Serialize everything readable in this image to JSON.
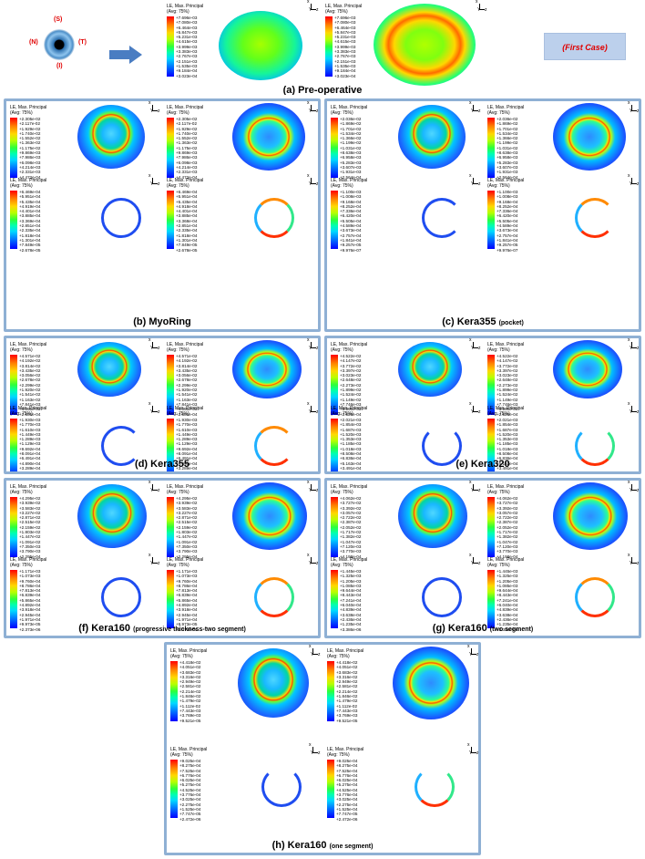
{
  "legend_title": [
    "LE, Max. Principal",
    "(Avg: 75%)"
  ],
  "axis": {
    "x": "x",
    "y": "Y",
    "z": "z"
  },
  "pre": {
    "labels": {
      "s": "(S)",
      "n": "(N)",
      "t": "(T)",
      "i": "(I)"
    },
    "first_case": "(First Case)",
    "caption": "(a) Pre-operative",
    "legend": [
      "+7.696e-03",
      "+7.080e-03",
      "+6.464e-03",
      "+5.847e-03",
      "+5.231e-03",
      "+4.615e-03",
      "+3.999e-03",
      "+3.383e-03",
      "+2.767e-03",
      "+2.151e-03",
      "+1.535e-03",
      "+9.184e-04",
      "+3.023e-04"
    ]
  },
  "panels": {
    "b": {
      "caption": "(b) MyoRing",
      "caption_small": "",
      "cornea": [
        "+2.305e-02",
        "+2.117e-02",
        "+1.929e-02",
        "+1.740e-02",
        "+1.552e-02",
        "+1.363e-02",
        "+1.175e-02",
        "+9.869e-03",
        "+7.986e-03",
        "+6.098e-03",
        "+4.214e-03",
        "+2.331e-03",
        "+4.472e-04"
      ],
      "ring": [
        "+6.469e-04",
        "+5.951e-04",
        "+5.435e-04",
        "+4.919e-04",
        "+4.401e-04",
        "+3.885e-04",
        "+3.369e-04",
        "+2.851e-04",
        "+2.335e-04",
        "+1.818e-04",
        "+1.301e-04",
        "+7.849e-05",
        "+2.678e-05"
      ],
      "ring2": [
        "+6.469e-04",
        "+5.951e-04",
        "+5.435e-04",
        "+4.918e-04",
        "+4.401e-04",
        "+3.885e-04",
        "+3.368e-04",
        "+2.851e-04",
        "+2.335e-04",
        "+1.818e-04",
        "+1.301e-04",
        "+7.849e-05",
        "+2.678e-05"
      ]
    },
    "c": {
      "caption": "(c) Kera355",
      "caption_small": "(pocket)",
      "cornea": [
        "+2.036e-02",
        "+1.869e-02",
        "+1.701e-02",
        "+1.534e-02",
        "+1.366e-02",
        "+1.199e-02",
        "+1.031e-02",
        "+8.638e-03",
        "+6.958e-03",
        "+5.283e-03",
        "+3.607e-03",
        "+1.931e-03",
        "+2.564e-04"
      ],
      "ring": [
        "+1.100e-03",
        "+1.008e-03",
        "+9.168e-04",
        "+8.252e-04",
        "+7.336e-04",
        "+6.420e-04",
        "+5.505e-04",
        "+4.589e-04",
        "+3.673e-04",
        "+2.757e-04",
        "+1.841e-04",
        "+9.257e-05",
        "+9.976e-07"
      ]
    },
    "d": {
      "caption": "(d) Kera355",
      "caption_small": "",
      "cornea": [
        "+4.571e-02",
        "+4.192e-02",
        "+3.814e-02",
        "+3.435e-02",
        "+3.056e-02",
        "+2.678e-02",
        "+2.299e-02",
        "+1.920e-02",
        "+1.541e-02",
        "+1.163e-02",
        "+7.841e-03",
        "+4.055e-03",
        "+2.681e-04"
      ],
      "ring": [
        "+1.930e-03",
        "+1.770e-03",
        "+1.610e-03",
        "+1.449e-03",
        "+1.289e-03",
        "+1.129e-03",
        "+9.692e-04",
        "+8.091e-04",
        "+6.491e-04",
        "+4.890e-04",
        "+3.289e-04",
        "+1.688e-04",
        "+8.699e-06"
      ]
    },
    "e": {
      "caption": "(e) Kera320",
      "caption_small": "",
      "cornea": [
        "+4.522e-02",
        "+4.147e-02",
        "+3.772e-02",
        "+3.397e-02",
        "+3.023e-02",
        "+2.648e-02",
        "+2.273e-02",
        "+1.899e-02",
        "+1.524e-02",
        "+1.149e-02",
        "+7.746e-03",
        "+3.999e-03",
        "+2.525e-04"
      ],
      "ring": [
        "+2.021e-03",
        "+1.854e-03",
        "+1.687e-03",
        "+1.520e-03",
        "+1.353e-03",
        "+1.185e-03",
        "+1.018e-03",
        "+8.508e-04",
        "+6.836e-04",
        "+5.163e-04",
        "+3.491e-04",
        "+1.819e-04",
        "+1.465e-05"
      ]
    },
    "f": {
      "caption": "(f) Kera160",
      "caption_small": "(progressive thickness-two segment)",
      "cornea": [
        "+4.295e-02",
        "+3.939e-02",
        "+3.583e-02",
        "+3.227e-02",
        "+2.871e-02",
        "+2.515e-02",
        "+2.159e-02",
        "+1.803e-02",
        "+1.447e-02",
        "+1.091e-02",
        "+7.350e-03",
        "+3.790e-03",
        "+2.295e-04"
      ],
      "ring": [
        "+1.171e-03",
        "+1.073e-03",
        "+9.760e-04",
        "+8.786e-04",
        "+7.813e-04",
        "+6.839e-04",
        "+5.865e-04",
        "+4.892e-04",
        "+3.918e-04",
        "+2.945e-04",
        "+1.971e-04",
        "+9.973e-05",
        "+2.373e-06"
      ]
    },
    "g": {
      "caption": "(g) Kera160",
      "caption_small": "(two segment)",
      "cornea": [
        "+4.062e-02",
        "+3.727e-02",
        "+3.392e-02",
        "+3.057e-02",
        "+2.722e-02",
        "+2.387e-02",
        "+2.052e-02",
        "+1.717e-02",
        "+1.382e-02",
        "+1.047e-02",
        "+7.120e-03",
        "+3.770e-03",
        "+4.198e-04"
      ],
      "ring": [
        "+1.445e-03",
        "+1.325e-03",
        "+1.205e-03",
        "+1.085e-03",
        "+9.644e-04",
        "+8.443e-04",
        "+7.241e-04",
        "+6.040e-04",
        "+4.839e-04",
        "+3.638e-04",
        "+2.436e-04",
        "+1.235e-04",
        "+3.386e-06"
      ]
    },
    "h": {
      "caption": "(h) Kera160",
      "caption_small": "(one segment)",
      "cornea": [
        "+4.418e-02",
        "+4.051e-02",
        "+3.683e-02",
        "+3.316e-02",
        "+2.949e-02",
        "+2.581e-02",
        "+2.214e-02",
        "+1.846e-02",
        "+1.479e-02",
        "+1.112e-02",
        "+7.443e-03",
        "+3.769e-03",
        "+9.521e-05"
      ],
      "ring": [
        "+9.025e-04",
        "+8.275e-04",
        "+7.525e-04",
        "+6.776e-04",
        "+6.025e-04",
        "+5.275e-04",
        "+4.525e-04",
        "+3.776e-04",
        "+3.025e-04",
        "+2.275e-04",
        "+1.525e-04",
        "+7.747e-05",
        "+2.472e-06"
      ]
    }
  }
}
